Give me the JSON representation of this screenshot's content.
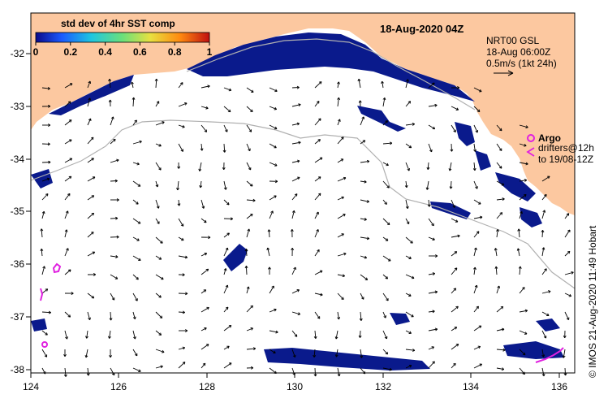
{
  "title": "18-Aug-2020 04Z",
  "colorbar": {
    "title": "std dev of 4hr SST comp",
    "ticks": [
      "0",
      "0.2",
      "0.4",
      "0.6",
      "0.8",
      "1"
    ],
    "colors": [
      "#0a0a8a",
      "#1a5aff",
      "#1fc6e0",
      "#6be07a",
      "#e8e040",
      "#ff8a10",
      "#c01010"
    ]
  },
  "current_legend": {
    "line1": "NRT00 GSL",
    "line2": "18-Aug 06:00Z",
    "line3": "0.5m/s (1kt 24h)"
  },
  "argo_legend": {
    "argo_label": "Argo",
    "drifters_line1": "drifters@12h",
    "drifters_line2": "to 19/08-12Z",
    "symbol_color": "#e020e0"
  },
  "axes": {
    "x_ticks": [
      "124",
      "126",
      "128",
      "130",
      "132",
      "134",
      "136"
    ],
    "y_ticks": [
      "-32",
      "-33",
      "-34",
      "-35",
      "-36",
      "-37",
      "-38"
    ]
  },
  "credit": "© IMOS 21-Aug-2020 11:49 Hobart",
  "colors": {
    "land": "#fcc8a0",
    "ocean": "#ffffff",
    "sst_patch": "#0a1a8c",
    "isobath": "#b0b0b0",
    "drifter": "#e020e0"
  }
}
